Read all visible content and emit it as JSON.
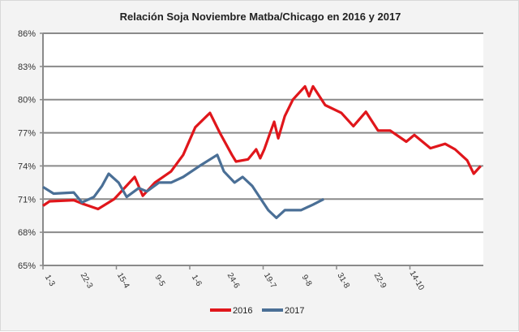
{
  "chart_data": {
    "type": "line",
    "title": "Relación Soja Noviembre Matba/Chicago en 2016 y 2017",
    "xlabel": "",
    "ylabel": "",
    "ylim": [
      65,
      86
    ],
    "yticks": [
      "65%",
      "68%",
      "71%",
      "74%",
      "77%",
      "80%",
      "83%",
      "86%"
    ],
    "ytick_values": [
      65,
      68,
      71,
      74,
      77,
      80,
      83,
      86
    ],
    "xlim": [
      0,
      120
    ],
    "xtick_labels": [
      "1-3",
      "22-3",
      "15-4",
      "9-5",
      "1-6",
      "24-6",
      "19-7",
      "9-8",
      "31-8",
      "22-9",
      "14-10"
    ],
    "xtick_values": [
      0,
      10,
      20,
      30,
      40,
      50,
      60,
      70,
      80,
      90,
      100
    ],
    "grid": true,
    "legend": "bottom",
    "series": [
      {
        "name": "2016",
        "color": "#e0161b",
        "x": [
          0,
          1.8,
          8.4,
          10.6,
          15,
          19.4,
          25,
          27.2,
          30.5,
          34.9,
          38.2,
          41.5,
          45.5,
          48.2,
          51.5,
          52.6,
          55.9,
          58.1,
          59.2,
          60.3,
          61.9,
          63,
          64.1,
          65.9,
          68.1,
          71.4,
          72.5,
          73.6,
          76.9,
          81.3,
          84.6,
          88,
          91.3,
          94.6,
          99,
          101.2,
          105.6,
          109.6,
          112.3,
          115.6,
          117.4,
          119.3
        ],
        "values": [
          70.4,
          70.8,
          70.9,
          70.6,
          70.1,
          71,
          73,
          71.3,
          72.5,
          73.5,
          75,
          77.5,
          78.8,
          77,
          75,
          74.4,
          74.6,
          75.5,
          74.7,
          75.5,
          77,
          78,
          76.5,
          78.5,
          80,
          81.2,
          80.3,
          81.2,
          79.5,
          78.8,
          77.6,
          78.9,
          77.2,
          77.2,
          76.2,
          76.8,
          75.6,
          76,
          75.5,
          74.5,
          73.3,
          74
        ]
      },
      {
        "name": "2017",
        "color": "#4a6f96",
        "x": [
          0,
          2.9,
          8.4,
          10.6,
          13.9,
          16.1,
          17.9,
          20.6,
          22.8,
          26.1,
          28.3,
          31.6,
          34.9,
          38.2,
          42.7,
          47.5,
          49.3,
          52.2,
          54.4,
          57,
          61.4,
          63.6,
          65.9,
          70.3,
          73.6,
          76.5
        ],
        "values": [
          72.1,
          71.5,
          71.6,
          70.7,
          71.2,
          72.2,
          73.3,
          72.5,
          71.2,
          72,
          71.7,
          72.5,
          72.5,
          73,
          74,
          75,
          73.5,
          72.5,
          73,
          72.2,
          70,
          69.3,
          70,
          70,
          70.5,
          71
        ]
      }
    ]
  }
}
